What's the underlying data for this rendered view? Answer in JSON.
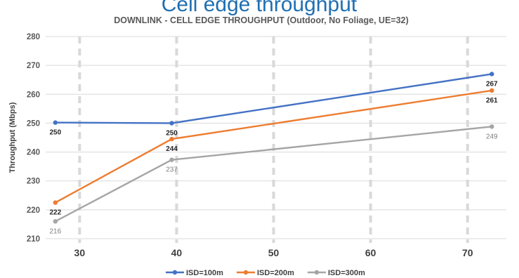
{
  "header": {
    "clipped_title": "Cell edge throughput"
  },
  "chart_data": {
    "type": "line",
    "title": "DOWNLINK - CELL EDGE THROUGHPUT (Outdoor, No Foliage, UE=32)",
    "xlabel": "",
    "ylabel": "Throughput (Mbps)",
    "xlim": [
      26.5,
      74
    ],
    "ylim": [
      210,
      280
    ],
    "y_ticks": [
      210,
      220,
      230,
      240,
      250,
      260,
      270,
      280
    ],
    "x_ticks": [
      30,
      40,
      50,
      60,
      70
    ],
    "grid": {
      "horizontal": "solid light gray",
      "vertical": "dashed light gray"
    },
    "legend_position": "bottom-center",
    "series": [
      {
        "name": "ISD=100m",
        "color": "#4472C4",
        "x": [
          27.5,
          39.5,
          72.5
        ],
        "values": [
          250.2,
          250,
          267
        ],
        "labels": [
          "250",
          "250",
          "267"
        ],
        "label_style": "bold-dark"
      },
      {
        "name": "ISD=200m",
        "color": "#ED7D31",
        "x": [
          27.5,
          39.5,
          72.5
        ],
        "values": [
          222.5,
          244.5,
          261.3
        ],
        "labels": [
          "222",
          "244",
          "261"
        ],
        "label_style": "bold-dark"
      },
      {
        "name": "ISD=300m",
        "color": "#A5A5A5",
        "x": [
          27.5,
          39.5,
          72.5
        ],
        "values": [
          216,
          237.3,
          248.8
        ],
        "labels": [
          "216",
          "237",
          "249"
        ],
        "label_style": "plain-gray"
      }
    ]
  }
}
